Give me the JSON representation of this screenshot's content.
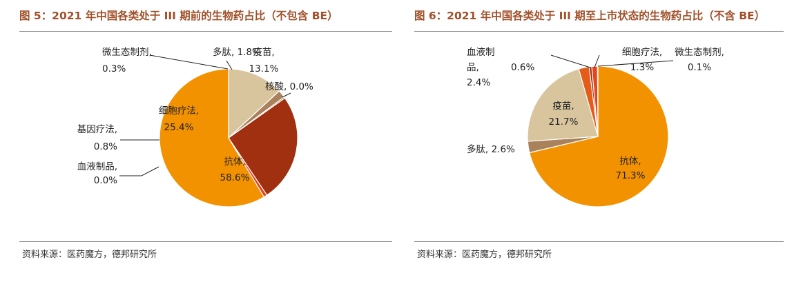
{
  "chart_data": [
    {
      "type": "pie",
      "title": "图 5：2021 年中国各类处于 III 期前的生物药占比（不包含 BE）",
      "source": "资料来源：医药魔方，德邦研究所",
      "slices": [
        {
          "category": "抗体",
          "value": 58.6,
          "value_label": "58.6%",
          "color": "#f39200"
        },
        {
          "category": "血液制品",
          "value": 0.0,
          "value_label": "0.0%",
          "color": "#e8a76a"
        },
        {
          "category": "基因疗法",
          "value": 0.8,
          "value_label": "0.8%",
          "color": "#e8451e"
        },
        {
          "category": "细胞疗法",
          "value": 25.4,
          "value_label": "25.4%",
          "color": "#a0300f"
        },
        {
          "category": "微生态制剂",
          "value": 0.3,
          "value_label": "0.3%",
          "color": "#6b4a2e"
        },
        {
          "category": "多肽",
          "value": 1.8,
          "value_label": "1.8%",
          "color": "#a9815a"
        },
        {
          "category": "疫苗",
          "value": 13.1,
          "value_label": "13.1%",
          "color": "#d8c59e"
        },
        {
          "category": "核酸",
          "value": 0.0,
          "value_label": "0.0%",
          "color": "#c9a36e"
        }
      ]
    },
    {
      "type": "pie",
      "title": "图 6：2021 年中国各类处于 III 期至上市状态的生物药占比（不含 BE）",
      "source": "资料来源：医药魔方，德邦研究所",
      "slices": [
        {
          "category": "抗体",
          "value": 71.3,
          "value_label": "71.3%",
          "color": "#f39200"
        },
        {
          "category": "多肽",
          "value": 2.6,
          "value_label": "2.6%",
          "color": "#a9815a"
        },
        {
          "category": "疫苗",
          "value": 21.7,
          "value_label": "21.7%",
          "color": "#d8c59e"
        },
        {
          "category": "血液制品",
          "value": 2.4,
          "value_label": "2.4%",
          "color": "#e35c1a"
        },
        {
          "category": "基因疗法",
          "value": 0.6,
          "value_label": "0.6%",
          "color": "#a0300f"
        },
        {
          "category": "细胞疗法",
          "value": 1.3,
          "value_label": "1.3%",
          "color": "#e8451e"
        },
        {
          "category": "微生态制剂",
          "value": 0.1,
          "value_label": "0.1%",
          "color": "#6b4a2e"
        }
      ]
    }
  ]
}
